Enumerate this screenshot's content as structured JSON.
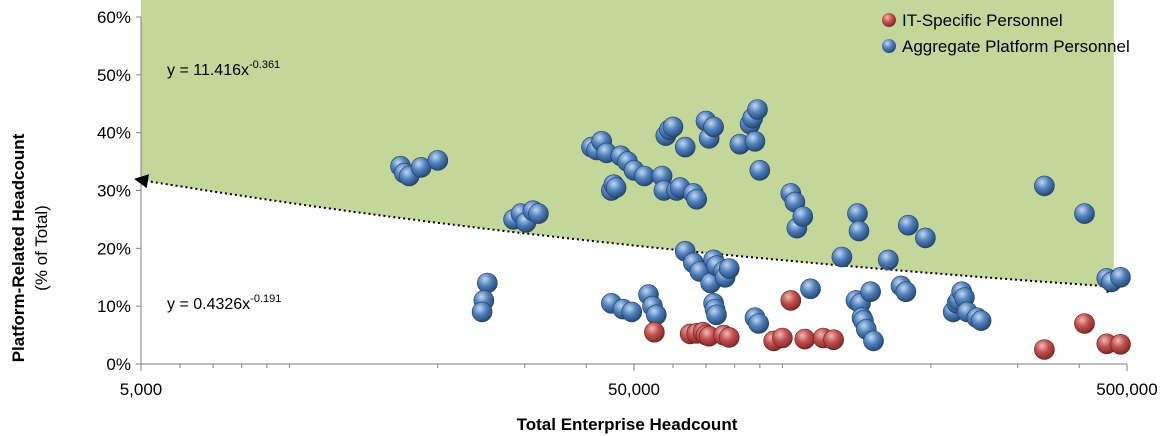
{
  "chart_data": {
    "type": "scatter",
    "title": "",
    "xlabel": "Total Enterprise Headcount",
    "ylabel": "Platform-Related Headcount",
    "ylabel_sub": "(% of Total)",
    "x_scale": "log",
    "xlim": [
      5000,
      500000
    ],
    "ylim": [
      0,
      60
    ],
    "x_ticks": [
      5000,
      50000,
      500000
    ],
    "x_tick_labels": [
      "5,000",
      "50,000",
      "500,000"
    ],
    "y_ticks": [
      0,
      10,
      20,
      30,
      40,
      50,
      60
    ],
    "y_tick_labels": [
      "0%",
      "10%",
      "20%",
      "30%",
      "40%",
      "50%",
      "60%"
    ],
    "grid": false,
    "legend_position": "top-right",
    "band_color": "#c4d79b",
    "series": [
      {
        "name": "IT-Specific Personnel",
        "color": "#c0504d",
        "points": [
          [
            55000,
            5.5
          ],
          [
            65000,
            5.2
          ],
          [
            67000,
            5.3
          ],
          [
            69000,
            5.5
          ],
          [
            70000,
            5.0
          ],
          [
            71000,
            4.8
          ],
          [
            76000,
            5.0
          ],
          [
            78000,
            4.6
          ],
          [
            96000,
            4.0
          ],
          [
            100000,
            4.5
          ],
          [
            104000,
            11.0
          ],
          [
            111000,
            4.3
          ],
          [
            121000,
            4.5
          ],
          [
            127000,
            4.2
          ],
          [
            340000,
            2.5
          ],
          [
            410000,
            7.0
          ],
          [
            455000,
            3.5
          ],
          [
            485000,
            3.4
          ]
        ]
      },
      {
        "name": "Aggregate Platform Personnel",
        "color": "#4f81bd",
        "points": [
          [
            16800,
            34.2
          ],
          [
            17100,
            33.0
          ],
          [
            17500,
            32.5
          ],
          [
            18500,
            34.0
          ],
          [
            20000,
            35.2
          ],
          [
            25200,
            14.0
          ],
          [
            24800,
            11.0
          ],
          [
            24600,
            9.0
          ],
          [
            28500,
            25.0
          ],
          [
            29500,
            26.0
          ],
          [
            30200,
            24.5
          ],
          [
            31200,
            26.5
          ],
          [
            32000,
            26.0
          ],
          [
            41000,
            37.5
          ],
          [
            42000,
            37.0
          ],
          [
            43000,
            38.5
          ],
          [
            44000,
            36.5
          ],
          [
            45000,
            30.0
          ],
          [
            45500,
            31.0
          ],
          [
            46000,
            30.5
          ],
          [
            47000,
            36.0
          ],
          [
            48500,
            35.0
          ],
          [
            50000,
            33.5
          ],
          [
            52500,
            32.5
          ],
          [
            45000,
            10.5
          ],
          [
            47500,
            9.5
          ],
          [
            49500,
            9.0
          ],
          [
            53500,
            12.0
          ],
          [
            54500,
            10.0
          ],
          [
            55500,
            8.5
          ],
          [
            57000,
            32.5
          ],
          [
            57500,
            30.0
          ],
          [
            58000,
            39.5
          ],
          [
            59000,
            40.5
          ],
          [
            60000,
            41.0
          ],
          [
            61000,
            30.0
          ],
          [
            62000,
            30.5
          ],
          [
            63500,
            37.5
          ],
          [
            66000,
            29.5
          ],
          [
            67000,
            28.5
          ],
          [
            63500,
            19.5
          ],
          [
            66000,
            17.5
          ],
          [
            68000,
            16.0
          ],
          [
            70000,
            42.0
          ],
          [
            71000,
            39.0
          ],
          [
            72500,
            41.0
          ],
          [
            71500,
            14.0
          ],
          [
            72500,
            18.0
          ],
          [
            73500,
            17.0
          ],
          [
            72500,
            10.5
          ],
          [
            73000,
            9.5
          ],
          [
            73500,
            8.5
          ],
          [
            76000,
            16.0
          ],
          [
            76500,
            15.0
          ],
          [
            78000,
            16.5
          ],
          [
            82000,
            38.0
          ],
          [
            86000,
            41.5
          ],
          [
            87000,
            42.5
          ],
          [
            88000,
            38.5
          ],
          [
            89000,
            44.0
          ],
          [
            90000,
            33.5
          ],
          [
            88000,
            8.0
          ],
          [
            89500,
            7.0
          ],
          [
            104000,
            29.5
          ],
          [
            106000,
            28.0
          ],
          [
            107000,
            23.5
          ],
          [
            110000,
            25.5
          ],
          [
            114000,
            13.0
          ],
          [
            132000,
            18.5
          ],
          [
            141000,
            11.0
          ],
          [
            142000,
            26.0
          ],
          [
            143000,
            23.0
          ],
          [
            144000,
            10.5
          ],
          [
            145000,
            8.0
          ],
          [
            146000,
            7.5
          ],
          [
            148000,
            6.0
          ],
          [
            151000,
            12.5
          ],
          [
            153000,
            4.0
          ],
          [
            164000,
            18.0
          ],
          [
            174000,
            13.5
          ],
          [
            178000,
            12.5
          ],
          [
            180000,
            24.0
          ],
          [
            195000,
            21.8
          ],
          [
            222000,
            9.0
          ],
          [
            226000,
            10.5
          ],
          [
            228000,
            11.0
          ],
          [
            231000,
            12.5
          ],
          [
            234000,
            11.5
          ],
          [
            237000,
            9.0
          ],
          [
            248000,
            8.0
          ],
          [
            253000,
            7.5
          ],
          [
            340000,
            30.8
          ],
          [
            410000,
            26.0
          ],
          [
            455000,
            14.8
          ],
          [
            465000,
            14.2
          ],
          [
            485000,
            15.0
          ]
        ]
      }
    ],
    "trendlines": [
      {
        "equation": "y = 11.416x",
        "exponent": "-0.361",
        "coef": 11.416,
        "power": -0.361
      },
      {
        "equation": "y = 0.4326x",
        "exponent": "-0.191",
        "coef": 0.4326,
        "power": -0.191
      }
    ]
  }
}
